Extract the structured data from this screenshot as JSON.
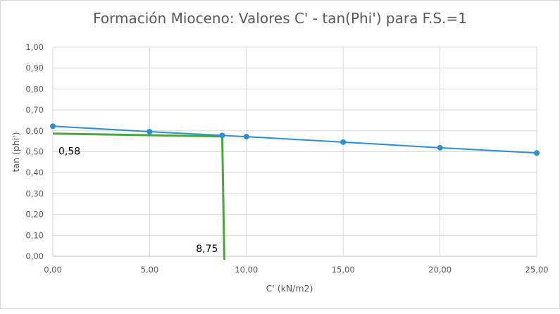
{
  "chart_data": {
    "type": "scatter",
    "title": "Formación Mioceno: Valores C' - tan(Phi') para F.S.=1",
    "xlabel": "C' (kN/m2)",
    "ylabel": "tan (phi')",
    "xlim": [
      0,
      25
    ],
    "ylim": [
      0,
      1
    ],
    "x_ticks": [
      "0,00",
      "5,00",
      "10,00",
      "15,00",
      "20,00",
      "25,00"
    ],
    "y_ticks": [
      "0,00",
      "0,10",
      "0,20",
      "0,30",
      "0,40",
      "0,50",
      "0,60",
      "0,70",
      "0,80",
      "0,90",
      "1,00"
    ],
    "grid": true,
    "legend": "none",
    "series": [
      {
        "color": "#2e8fcf",
        "x": [
          0,
          5,
          8.75,
          10,
          15,
          20,
          25
        ],
        "y": [
          0.622,
          0.596,
          0.578,
          0.572,
          0.546,
          0.519,
          0.494
        ]
      }
    ],
    "annotations": {
      "color": "#4aa53b",
      "horizontal_line": {
        "y": 0.58,
        "x_from": 0,
        "x_to": 8.75,
        "label": "0,58"
      },
      "vertical_line": {
        "x": 8.75,
        "y_from": 0,
        "y_to": 0.58,
        "label": "8,75"
      }
    }
  }
}
